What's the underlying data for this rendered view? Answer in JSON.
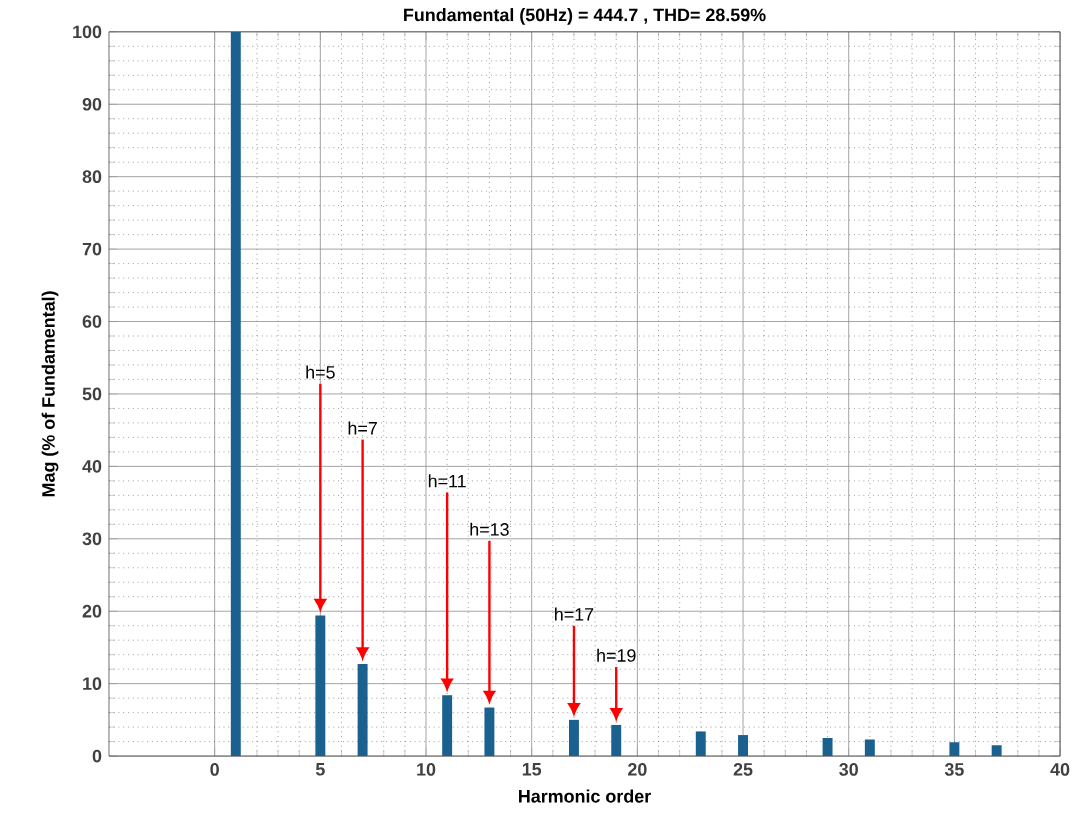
{
  "chart_data": {
    "type": "bar",
    "title": "Fundamental (50Hz) = 444.7 , THD= 28.59%",
    "xlabel": "Harmonic order",
    "ylabel": "Mag (% of Fundamental)",
    "x": [
      1,
      5,
      7,
      11,
      13,
      17,
      19,
      23,
      25,
      29,
      31,
      35,
      37
    ],
    "values": [
      100,
      19.4,
      12.7,
      8.4,
      6.7,
      5.0,
      4.3,
      3.4,
      2.9,
      2.5,
      2.3,
      1.9,
      1.5
    ],
    "color": "#1b6190",
    "xlim": [
      -5,
      40
    ],
    "xticks": [
      0,
      5,
      10,
      15,
      20,
      25,
      30,
      35,
      40
    ],
    "ylim": [
      0,
      100
    ],
    "yticks": [
      0,
      10,
      20,
      30,
      40,
      50,
      60,
      70,
      80,
      90,
      100
    ],
    "grid": true,
    "annotations": [
      {
        "text": "h=5",
        "x": 5,
        "y": 19.4
      },
      {
        "text": "h=7",
        "x": 7,
        "y": 12.7
      },
      {
        "text": "h=11",
        "x": 11,
        "y": 8.4
      },
      {
        "text": "h=13",
        "x": 13,
        "y": 6.7
      },
      {
        "text": "h=17",
        "x": 17,
        "y": 5.0
      },
      {
        "text": "h=19",
        "x": 19,
        "y": 4.3
      }
    ]
  }
}
